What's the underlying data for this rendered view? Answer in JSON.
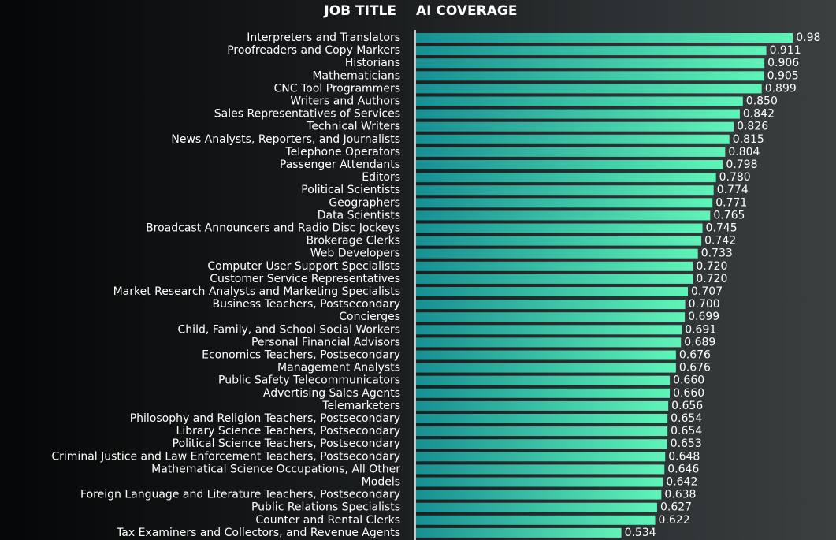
{
  "chart_data": {
    "type": "bar",
    "orientation": "horizontal",
    "category_header": "JOB TITLE",
    "value_header": "AI COVERAGE",
    "categories": [
      "Interpreters and Translators",
      "Proofreaders and Copy Markers",
      "Historians",
      "Mathematicians",
      "CNC Tool Programmers",
      "Writers and Authors",
      "Sales Representatives of Services",
      "Technical Writers",
      "News Analysts, Reporters, and Journalists",
      "Telephone Operators",
      "Passenger Attendants",
      "Editors",
      "Political Scientists",
      "Geographers",
      "Data Scientists",
      "Broadcast Announcers and Radio Disc Jockeys",
      "Brokerage Clerks",
      "Web Developers",
      "Computer User Support Specialists",
      "Customer Service Representatives",
      "Market Research Analysts and Marketing Specialists",
      "Business Teachers, Postsecondary",
      "Concierges",
      "Child, Family, and School Social Workers",
      "Personal Financial Advisors",
      "Economics Teachers, Postsecondary",
      "Management Analysts",
      "Public Safety Telecommunicators",
      "Advertising Sales Agents",
      "Telemarketers",
      "Philosophy and Religion Teachers, Postsecondary",
      "Library Science Teachers, Postsecondary",
      "Political Science Teachers, Postsecondary",
      "Criminal Justice and Law Enforcement Teachers, Postsecondary",
      "Mathematical Science Occupations, All Other",
      "Models",
      "Foreign Language and Literature Teachers, Postsecondary",
      "Public Relations Specialists",
      "Counter and Rental Clerks",
      "Tax Examiners and Collectors, and Revenue Agents"
    ],
    "values": [
      0.98,
      0.911,
      0.906,
      0.905,
      0.899,
      0.85,
      0.842,
      0.826,
      0.815,
      0.804,
      0.798,
      0.78,
      0.774,
      0.771,
      0.765,
      0.745,
      0.742,
      0.733,
      0.72,
      0.72,
      0.707,
      0.7,
      0.699,
      0.691,
      0.689,
      0.676,
      0.676,
      0.66,
      0.66,
      0.656,
      0.654,
      0.654,
      0.653,
      0.648,
      0.646,
      0.642,
      0.638,
      0.627,
      0.622,
      0.534
    ],
    "value_labels": [
      "0.98",
      "0.911",
      "0.906",
      "0.905",
      "0.899",
      "0.850",
      "0.842",
      "0.826",
      "0.815",
      "0.804",
      "0.798",
      "0.780",
      "0.774",
      "0.771",
      "0.765",
      "0.745",
      "0.742",
      "0.733",
      "0.720",
      "0.720",
      "0.707",
      "0.700",
      "0.699",
      "0.691",
      "0.689",
      "0.676",
      "0.676",
      "0.660",
      "0.660",
      "0.656",
      "0.654",
      "0.654",
      "0.653",
      "0.648",
      "0.646",
      "0.642",
      "0.638",
      "0.627",
      "0.622",
      "0.534"
    ]
  }
}
